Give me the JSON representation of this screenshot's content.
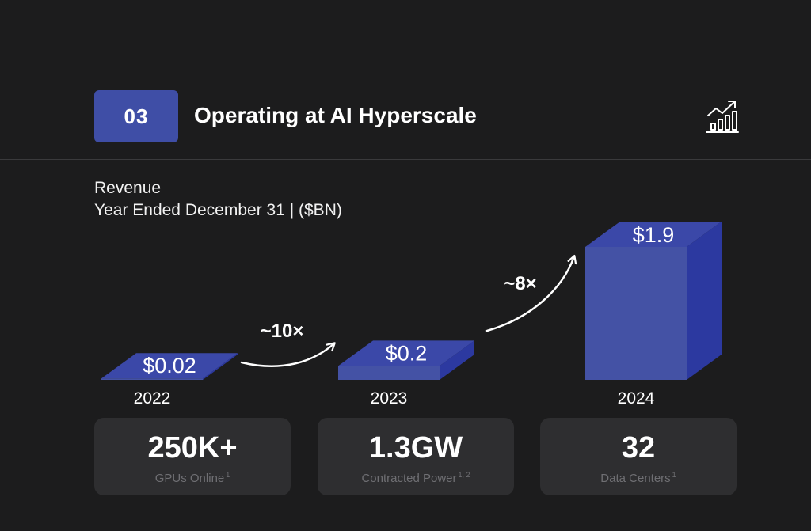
{
  "header": {
    "section_number": "03",
    "title": "Operating at AI Hyperscale",
    "icon": "growth-chart-icon",
    "accent_color": "#3f4ea6"
  },
  "chart_data": {
    "type": "bar",
    "title": "Revenue",
    "subtitle": "Year Ended December 31  |  ($BN)",
    "categories": [
      "2022",
      "2023",
      "2024"
    ],
    "values": [
      0.02,
      0.2,
      1.9
    ],
    "data_labels": [
      "$0.02",
      "$0.2",
      "$1.9"
    ],
    "growth_annotations": [
      {
        "from": "2022",
        "to": "2023",
        "label": "~10×"
      },
      {
        "from": "2023",
        "to": "2024",
        "label": "~8×"
      }
    ],
    "ylim": [
      0,
      1.9
    ],
    "grid": false,
    "legend": "none",
    "bar_colors": {
      "front": "#4452a5",
      "top": "#3b48a8",
      "side": "#2c39a0"
    }
  },
  "stats": [
    {
      "value": "250K+",
      "label": "GPUs Online",
      "footnote": "1"
    },
    {
      "value": "1.3GW",
      "label": "Contracted Power",
      "footnote": "1, 2"
    },
    {
      "value": "32",
      "label": "Data Centers",
      "footnote": "1"
    }
  ]
}
